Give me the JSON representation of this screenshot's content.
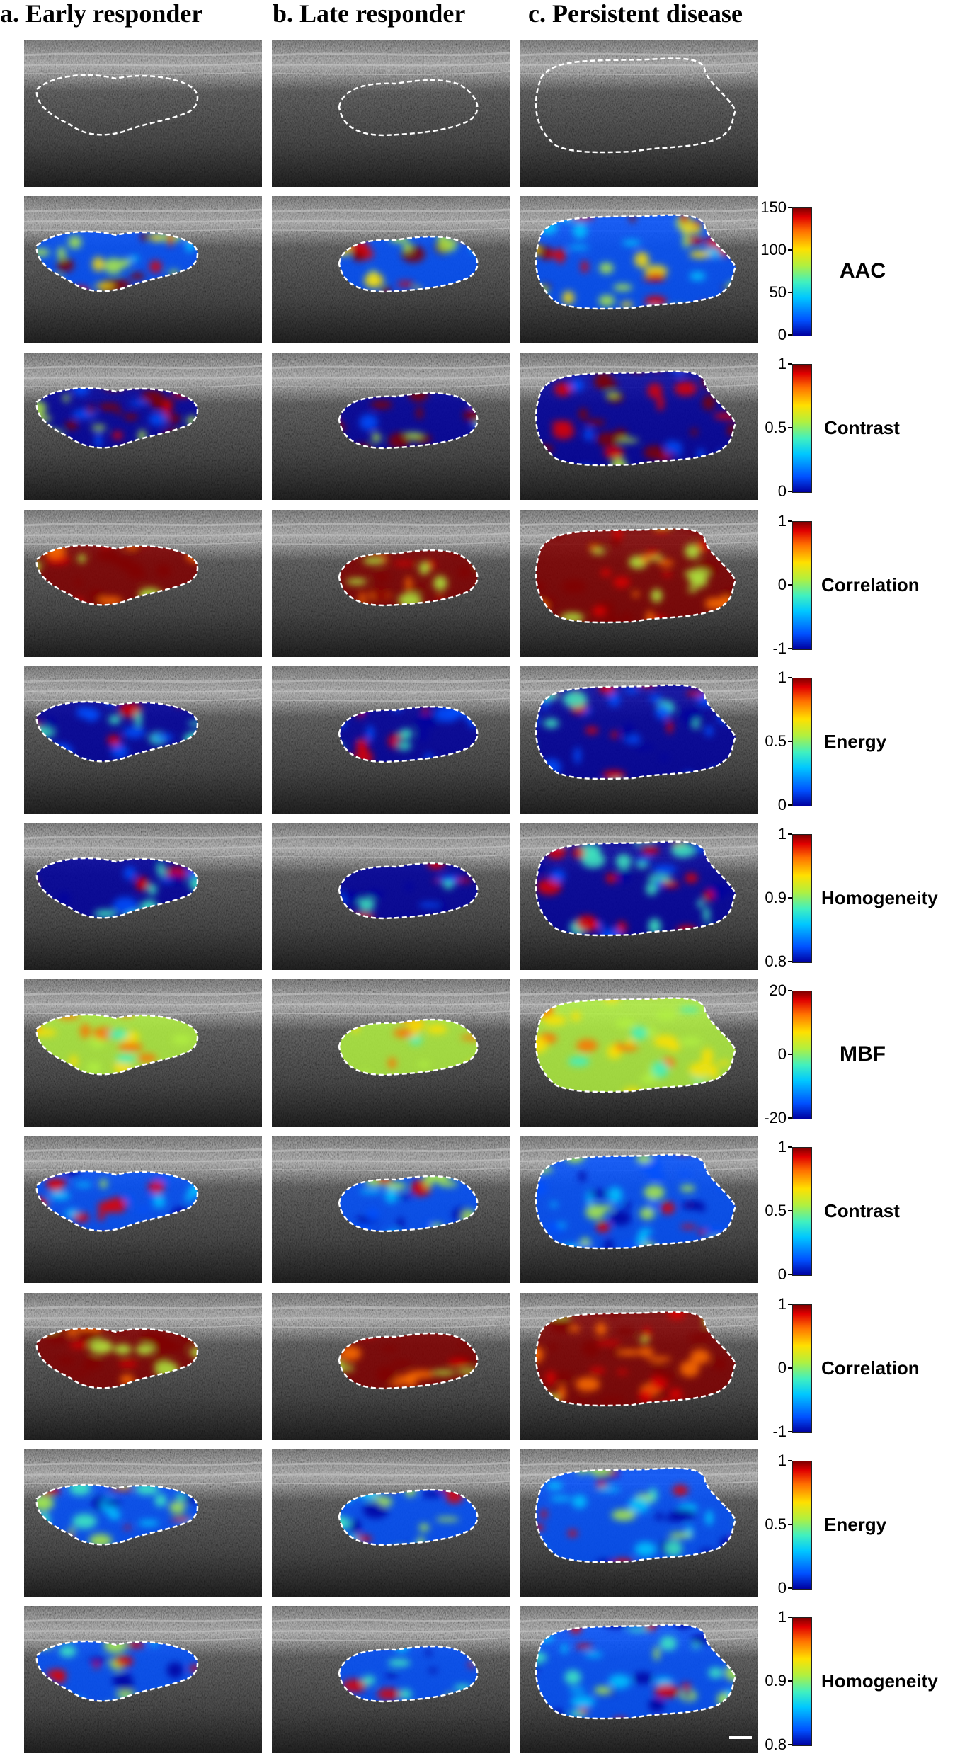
{
  "columns": [
    {
      "label": "a. Early responder"
    },
    {
      "label": "b. Late responder"
    },
    {
      "label": "c. Persistent disease"
    }
  ],
  "rows": [
    {
      "feature": "",
      "overlay": "none",
      "scale": []
    },
    {
      "feature": "AAC",
      "overlay": "mixed",
      "scale": [
        "150",
        "100",
        "50",
        "0"
      ]
    },
    {
      "feature": "Contrast",
      "overlay": "mixed-hot",
      "scale": [
        "1",
        "0.5",
        "0"
      ]
    },
    {
      "feature": "Correlation",
      "overlay": "hot",
      "scale": [
        "1",
        "0",
        "-1"
      ]
    },
    {
      "feature": "Energy",
      "overlay": "cold",
      "scale": [
        "1",
        "0.5",
        "0"
      ]
    },
    {
      "feature": "Homogeneity",
      "overlay": "cold",
      "scale": [
        "1",
        "0.9",
        "0.8"
      ]
    },
    {
      "feature": "MBF",
      "overlay": "warm",
      "scale": [
        "20",
        "0",
        "-20"
      ]
    },
    {
      "feature": "Contrast",
      "overlay": "cool",
      "scale": [
        "1",
        "0.5",
        "0"
      ]
    },
    {
      "feature": "Correlation",
      "overlay": "hot",
      "scale": [
        "1",
        "0",
        "-1"
      ]
    },
    {
      "feature": "Energy",
      "overlay": "mixed-cool",
      "scale": [
        "1",
        "0.5",
        "0"
      ]
    },
    {
      "feature": "Homogeneity",
      "overlay": "mixed-cool",
      "scale": [
        "1",
        "0.9",
        "0.8"
      ]
    }
  ],
  "colors": {
    "colormap": [
      "#0000a0",
      "#0050ff",
      "#00c8ff",
      "#40f0c0",
      "#b0f040",
      "#ffe000",
      "#ff7000",
      "#e00000",
      "#800000"
    ],
    "roi_outline": "#ffffff"
  }
}
